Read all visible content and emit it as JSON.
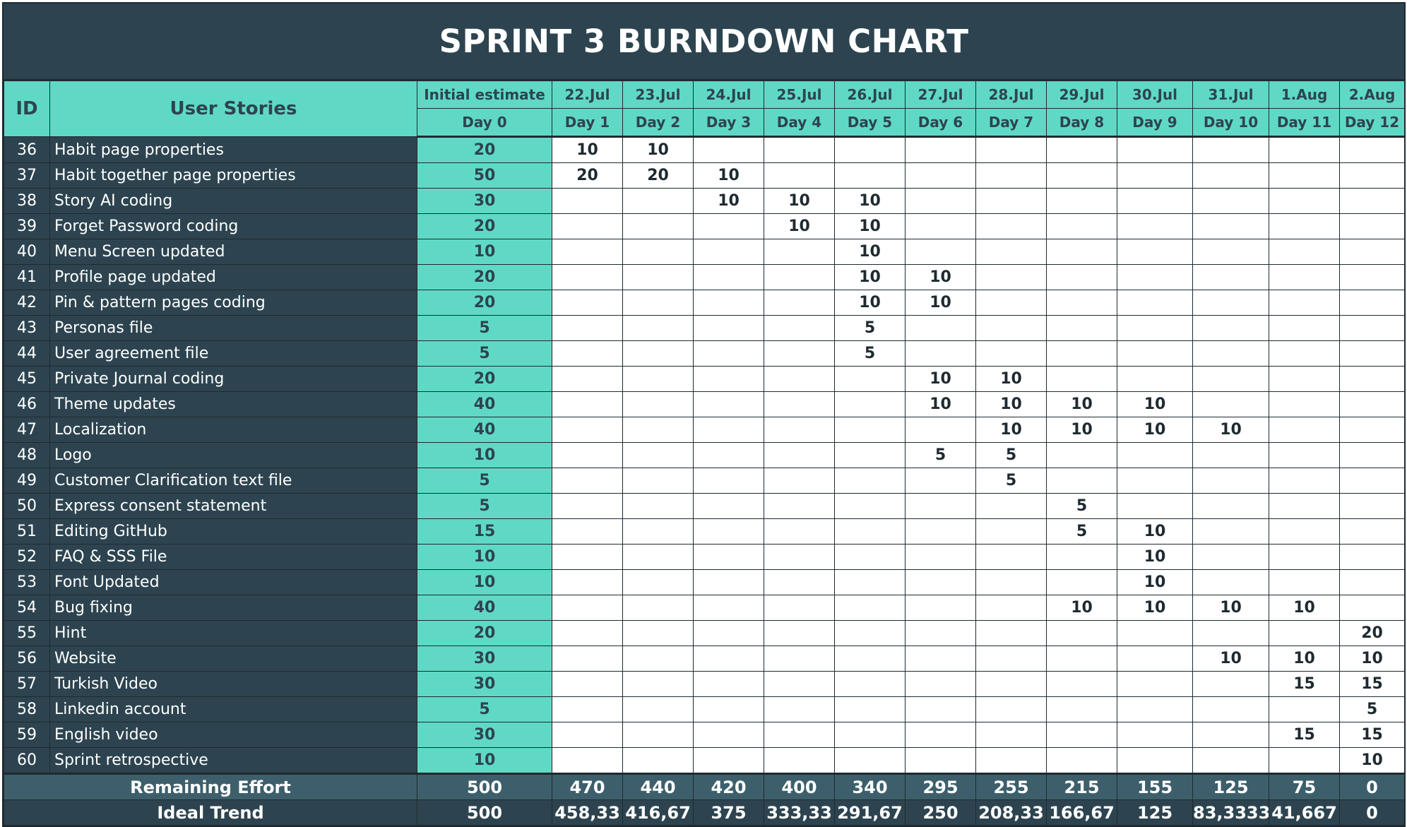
{
  "title": "SPRINT 3 BURNDOWN CHART",
  "colors": {
    "dark": "#2d4450",
    "accent": "#5fd9c6",
    "cell": "#ffffff",
    "remaining_row": "#3d5f6b"
  },
  "header": {
    "id_label": "ID",
    "stories_label": "User Stories",
    "initial_label": "Initial estimate",
    "initial_day": "Day 0",
    "dates": [
      "22.Jul",
      "23.Jul",
      "24.Jul",
      "25.Jul",
      "26.Jul",
      "27.Jul",
      "28.Jul",
      "29.Jul",
      "30.Jul",
      "31.Jul",
      "1.Aug",
      "2.Aug"
    ],
    "days": [
      "Day 1",
      "Day 2",
      "Day 3",
      "Day 4",
      "Day 5",
      "Day 6",
      "Day 7",
      "Day 8",
      "Day 9",
      "Day 10",
      "Day 11",
      "Day 12"
    ]
  },
  "rows": [
    {
      "id": "36",
      "story": "Habit page properties",
      "initial": "20",
      "days": [
        "10",
        "10",
        "",
        "",
        "",
        "",
        "",
        "",
        "",
        "",
        "",
        ""
      ]
    },
    {
      "id": "37",
      "story": "Habit together page properties",
      "initial": "50",
      "days": [
        "20",
        "20",
        "10",
        "",
        "",
        "",
        "",
        "",
        "",
        "",
        "",
        ""
      ]
    },
    {
      "id": "38",
      "story": "Story AI coding",
      "initial": "30",
      "days": [
        "",
        "",
        "10",
        "10",
        "10",
        "",
        "",
        "",
        "",
        "",
        "",
        ""
      ]
    },
    {
      "id": "39",
      "story": "Forget Password coding",
      "initial": "20",
      "days": [
        "",
        "",
        "",
        "10",
        "10",
        "",
        "",
        "",
        "",
        "",
        "",
        ""
      ]
    },
    {
      "id": "40",
      "story": "Menu Screen updated",
      "initial": "10",
      "days": [
        "",
        "",
        "",
        "",
        "10",
        "",
        "",
        "",
        "",
        "",
        "",
        ""
      ]
    },
    {
      "id": "41",
      "story": "Profile page updated",
      "initial": "20",
      "days": [
        "",
        "",
        "",
        "",
        "10",
        "10",
        "",
        "",
        "",
        "",
        "",
        ""
      ]
    },
    {
      "id": "42",
      "story": "Pin &  pattern pages coding",
      "initial": "20",
      "days": [
        "",
        "",
        "",
        "",
        "10",
        "10",
        "",
        "",
        "",
        "",
        "",
        ""
      ]
    },
    {
      "id": "43",
      "story": "Personas file",
      "initial": "5",
      "days": [
        "",
        "",
        "",
        "",
        "5",
        "",
        "",
        "",
        "",
        "",
        "",
        ""
      ]
    },
    {
      "id": "44",
      "story": "User agreement file",
      "initial": "5",
      "days": [
        "",
        "",
        "",
        "",
        "5",
        "",
        "",
        "",
        "",
        "",
        "",
        ""
      ]
    },
    {
      "id": "45",
      "story": "Private Journal coding",
      "initial": "20",
      "days": [
        "",
        "",
        "",
        "",
        "",
        "10",
        "10",
        "",
        "",
        "",
        "",
        ""
      ]
    },
    {
      "id": "46",
      "story": "Theme updates",
      "initial": "40",
      "days": [
        "",
        "",
        "",
        "",
        "",
        "10",
        "10",
        "10",
        "10",
        "",
        "",
        ""
      ]
    },
    {
      "id": "47",
      "story": "Localization",
      "initial": "40",
      "days": [
        "",
        "",
        "",
        "",
        "",
        "",
        "10",
        "10",
        "10",
        "10",
        "",
        ""
      ]
    },
    {
      "id": "48",
      "story": "Logo",
      "initial": "10",
      "days": [
        "",
        "",
        "",
        "",
        "",
        "5",
        "5",
        "",
        "",
        "",
        "",
        ""
      ]
    },
    {
      "id": "49",
      "story": "Customer Clarification text file",
      "initial": "5",
      "days": [
        "",
        "",
        "",
        "",
        "",
        "",
        "5",
        "",
        "",
        "",
        "",
        ""
      ]
    },
    {
      "id": "50",
      "story": "Express consent statement",
      "initial": "5",
      "days": [
        "",
        "",
        "",
        "",
        "",
        "",
        "",
        "5",
        "",
        "",
        "",
        ""
      ]
    },
    {
      "id": "51",
      "story": "Editing GitHub",
      "initial": "15",
      "days": [
        "",
        "",
        "",
        "",
        "",
        "",
        "",
        "5",
        "10",
        "",
        "",
        ""
      ]
    },
    {
      "id": "52",
      "story": "FAQ & SSS File",
      "initial": "10",
      "days": [
        "",
        "",
        "",
        "",
        "",
        "",
        "",
        "",
        "10",
        "",
        "",
        ""
      ]
    },
    {
      "id": "53",
      "story": "Font Updated",
      "initial": "10",
      "days": [
        "",
        "",
        "",
        "",
        "",
        "",
        "",
        "",
        "10",
        "",
        "",
        ""
      ]
    },
    {
      "id": "54",
      "story": "Bug fixing",
      "initial": "40",
      "days": [
        "",
        "",
        "",
        "",
        "",
        "",
        "",
        "10",
        "10",
        "10",
        "10",
        ""
      ]
    },
    {
      "id": "55",
      "story": "Hint",
      "initial": "20",
      "days": [
        "",
        "",
        "",
        "",
        "",
        "",
        "",
        "",
        "",
        "",
        "",
        "20"
      ]
    },
    {
      "id": "56",
      "story": "Website",
      "initial": "30",
      "days": [
        "",
        "",
        "",
        "",
        "",
        "",
        "",
        "",
        "",
        "10",
        "10",
        "10"
      ]
    },
    {
      "id": "57",
      "story": "Turkish Video",
      "initial": "30",
      "days": [
        "",
        "",
        "",
        "",
        "",
        "",
        "",
        "",
        "",
        "",
        "15",
        "15"
      ]
    },
    {
      "id": "58",
      "story": "Linkedin account",
      "initial": "5",
      "days": [
        "",
        "",
        "",
        "",
        "",
        "",
        "",
        "",
        "",
        "",
        "",
        "5"
      ]
    },
    {
      "id": "59",
      "story": "English video",
      "initial": "30",
      "days": [
        "",
        "",
        "",
        "",
        "",
        "",
        "",
        "",
        "",
        "",
        "15",
        "15"
      ]
    },
    {
      "id": "60",
      "story": "Sprint retrospective",
      "initial": "10",
      "days": [
        "",
        "",
        "",
        "",
        "",
        "",
        "",
        "",
        "",
        "",
        "",
        "10"
      ]
    }
  ],
  "remaining": {
    "label": "Remaining Effort",
    "values": [
      "500",
      "470",
      "440",
      "420",
      "400",
      "340",
      "295",
      "255",
      "215",
      "155",
      "125",
      "75",
      "0"
    ]
  },
  "ideal": {
    "label": "Ideal Trend",
    "values": [
      "500",
      "458,33",
      "416,67",
      "375",
      "333,33",
      "291,67",
      "250",
      "208,33",
      "166,67",
      "125",
      "83,3333",
      "41,667",
      "0"
    ]
  }
}
